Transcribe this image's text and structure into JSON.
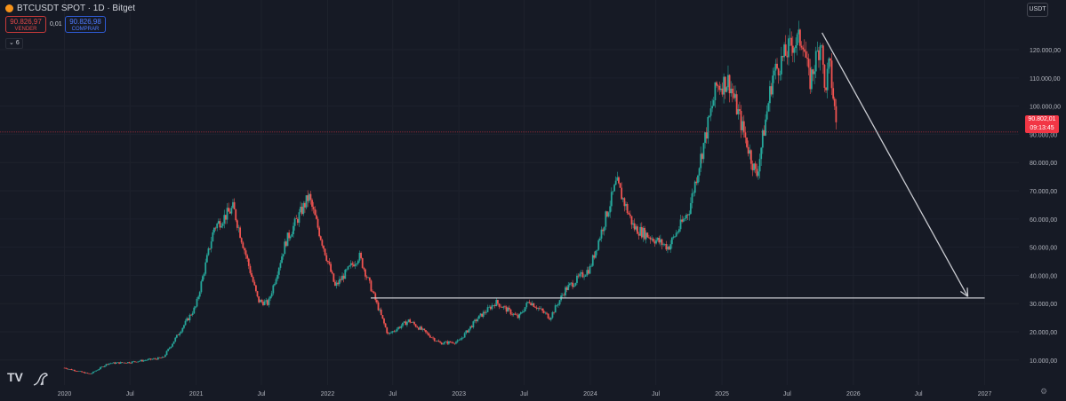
{
  "header": {
    "symbol_title": "BTCUSDT SPOT · 1D · Bitget",
    "sell_price": "90.826,97",
    "sell_label": "VENDER",
    "spread": "0,01",
    "buy_price": "90.826,98",
    "buy_label": "COMPRAR",
    "indicator_count": "6",
    "currency": "USDT"
  },
  "price_tag": {
    "price": "90.802,01",
    "countdown": "09:13:45"
  },
  "icons": {
    "coin": "bitcoin-coin-icon",
    "chevron": "chevron-down-icon",
    "logo": "tradingview-logo-icon",
    "dino": "dinosaur-icon",
    "settings": "gear-icon"
  },
  "colors": {
    "up": "#26a69a",
    "down": "#ef5350",
    "background": "#161a25",
    "last_price": "#f23645"
  },
  "chart_data": {
    "type": "candlestick",
    "title": "BTCUSDT SPOT · 1D · Bitget",
    "x_ticks": [
      "2020",
      "Jul",
      "2021",
      "Jul",
      "2022",
      "Jul",
      "2023",
      "Jul",
      "2024",
      "Jul",
      "2025",
      "Jul",
      "2026",
      "Jul",
      "2027"
    ],
    "y_ticks": [
      "10.000,00",
      "20.000,00",
      "30.000,00",
      "40.000,00",
      "50.000,00",
      "60.000,00",
      "70.000,00",
      "80.000,00",
      "90.000,00",
      "100.000,00",
      "110.000,00",
      "120.000,00"
    ],
    "ylim": [
      0,
      127000
    ],
    "xlim": [
      "2019-12-01",
      "2027-04-01"
    ],
    "price_path": [
      [
        "2020-01-01",
        7200
      ],
      [
        "2020-03-12",
        5000
      ],
      [
        "2020-05-01",
        8800
      ],
      [
        "2020-07-01",
        9200
      ],
      [
        "2020-10-01",
        10800
      ],
      [
        "2020-12-31",
        29000
      ],
      [
        "2021-02-20",
        57000
      ],
      [
        "2021-04-14",
        64000
      ],
      [
        "2021-06-22",
        31000
      ],
      [
        "2021-07-20",
        30000
      ],
      [
        "2021-09-07",
        52000
      ],
      [
        "2021-11-10",
        68000
      ],
      [
        "2022-01-22",
        36000
      ],
      [
        "2022-03-30",
        47000
      ],
      [
        "2022-06-18",
        19000
      ],
      [
        "2022-08-15",
        24000
      ],
      [
        "2022-11-09",
        16000
      ],
      [
        "2022-12-31",
        16500
      ],
      [
        "2023-02-20",
        24500
      ],
      [
        "2023-04-14",
        30500
      ],
      [
        "2023-06-15",
        25000
      ],
      [
        "2023-07-15",
        31000
      ],
      [
        "2023-09-11",
        25000
      ],
      [
        "2023-10-24",
        35000
      ],
      [
        "2023-12-31",
        42500
      ],
      [
        "2024-03-14",
        73000
      ],
      [
        "2024-05-01",
        57000
      ],
      [
        "2024-08-05",
        50000
      ],
      [
        "2024-10-01",
        63000
      ],
      [
        "2024-12-17",
        107000
      ],
      [
        "2025-01-20",
        109000
      ],
      [
        "2025-04-07",
        75000
      ],
      [
        "2025-05-22",
        111000
      ],
      [
        "2025-07-14",
        122000
      ],
      [
        "2025-08-14",
        124000
      ],
      [
        "2025-09-01",
        108000
      ],
      [
        "2025-10-06",
        125000
      ],
      [
        "2025-10-11",
        104000
      ],
      [
        "2025-10-27",
        115000
      ],
      [
        "2025-11-17",
        90800
      ]
    ],
    "last_price": 90802.01,
    "support_line": {
      "value": 32000,
      "from": "2022-05-01",
      "to": "2027-01-01"
    },
    "projection_arrow": {
      "from": [
        "2025-10-06",
        126000
      ],
      "to": [
        "2026-11-15",
        32500
      ]
    }
  }
}
